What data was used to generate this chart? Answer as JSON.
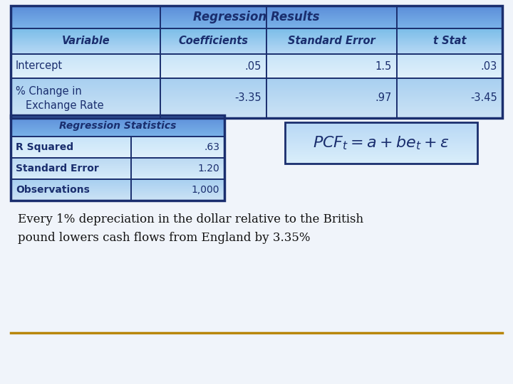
{
  "bg_color": "#f0f4fa",
  "table1_title": "Regression Results",
  "table1_header": [
    "Variable",
    "Coefficients",
    "Standard Error",
    "t Stat"
  ],
  "table1_rows": [
    [
      "Intercept",
      ".05",
      "1.5",
      ".03"
    ],
    [
      "% Change in\nExchange Rate",
      "-3.35",
      ".97",
      "-3.45"
    ]
  ],
  "table2_title": "Regression Statistics",
  "table2_rows": [
    [
      "R Squared",
      ".63"
    ],
    [
      "Standard Error",
      "1.20"
    ],
    [
      "Observations",
      "1,000"
    ]
  ],
  "formula": "$PCF_t = a + be_t + \\varepsilon$",
  "footer_text": "Every 1% depreciation in the dollar relative to the British\npound lowers cash flows from England by 3.35%",
  "border_color": "#1a2e6e",
  "text_color_dark": "#1a2e6e",
  "text_color_black": "#111111",
  "title_grad_top": "#5b8dd9",
  "title_grad_bot": "#7ab3e8",
  "header_grad_top": "#7bbde8",
  "header_grad_bot": "#b8d9f5",
  "row1_grad_top": "#c8e4f8",
  "row1_grad_bot": "#e0f0fb",
  "row2_grad_top": "#a8cff0",
  "row2_grad_bot": "#cce3f5",
  "row3_grad_top": "#bbd9f2",
  "row3_grad_bot": "#d8ecfa",
  "formula_grad_top": "#b8d8f5",
  "formula_grad_bot": "#daeefa",
  "line_color": "#b8860b"
}
